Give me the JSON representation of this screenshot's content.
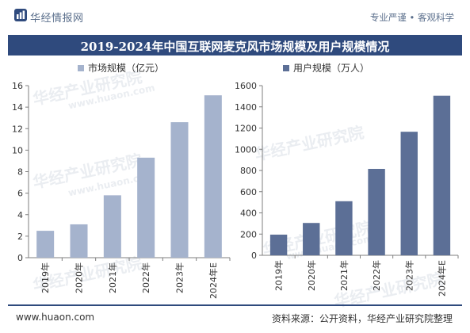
{
  "header": {
    "brand": "华经情报网",
    "slogan": "专业严谨 • 客观科学",
    "title": "2019-2024年中国互联网麦克风市场规模及用户规模情况"
  },
  "footer": {
    "site": "www.huaon.com",
    "source": "资料来源：公开资料，华经产业研究院整理"
  },
  "watermark": {
    "text": "华经产业研究院",
    "url": "www.huaon.com"
  },
  "colors": {
    "title_bg": "#2f4a7d",
    "market_bar": "#a5b3cd",
    "user_bar": "#5c6f96"
  },
  "chart_data": [
    {
      "type": "bar",
      "categories": [
        "2019年",
        "2020年",
        "2021年",
        "2022年",
        "2023年",
        "2024年E"
      ],
      "series": [
        {
          "name": "市场规模（亿元）",
          "values": [
            2.5,
            3.1,
            5.8,
            9.3,
            12.6,
            15.1
          ]
        }
      ],
      "ylim": [
        0,
        16
      ],
      "yticks": [
        0,
        2,
        4,
        6,
        8,
        10,
        12,
        14,
        16
      ],
      "legend": "top-left",
      "grid": false
    },
    {
      "type": "bar",
      "categories": [
        "2019年",
        "2020年",
        "2021年",
        "2022年",
        "2023年",
        "2024年E"
      ],
      "series": [
        {
          "name": "用户规模（万人）",
          "values": [
            195,
            305,
            510,
            815,
            1165,
            1505
          ]
        }
      ],
      "ylim": [
        0,
        1600
      ],
      "yticks": [
        0,
        200,
        400,
        600,
        800,
        1000,
        1200,
        1400,
        1600
      ],
      "legend": "top-left",
      "grid": false
    }
  ]
}
